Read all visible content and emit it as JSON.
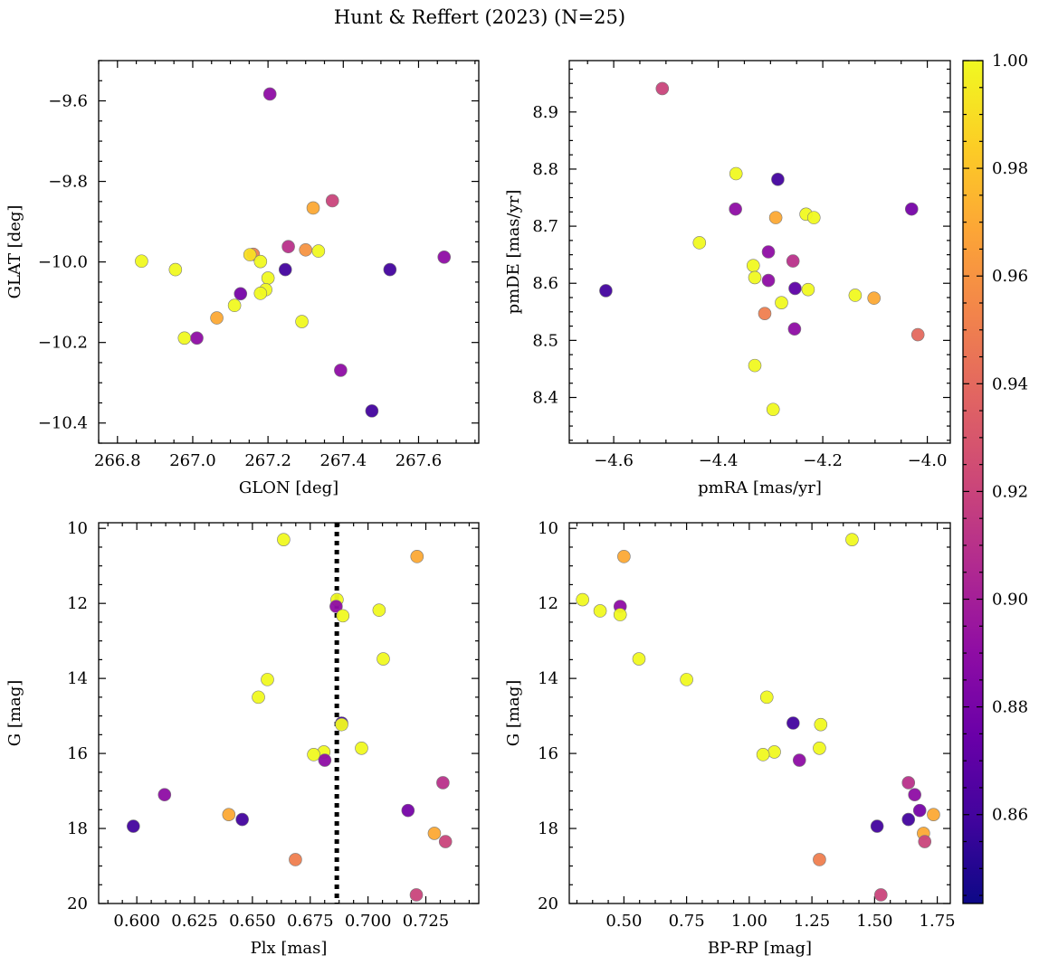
{
  "figure": {
    "title": "Hunt & Reffert (2023) (N=25)"
  },
  "colorbar": {
    "colormap": "plasma",
    "range": [
      0.8435,
      1.0
    ],
    "ticks": [
      0.86,
      0.88,
      0.9,
      0.92,
      0.94,
      0.96,
      0.98,
      1.0
    ],
    "tick_labels": [
      "0.86",
      "0.88",
      "0.90",
      "0.92",
      "0.94",
      "0.96",
      "0.98",
      "1.00"
    ]
  },
  "chart_data": [
    {
      "id": "glon-glat",
      "type": "scatter",
      "xlabel": "GLON [deg]",
      "ylabel": "GLAT [deg]",
      "xlim": [
        266.75,
        267.76
      ],
      "ylim": [
        -10.45,
        -9.5
      ],
      "y_inverted": false,
      "xticks": [
        266.8,
        267.0,
        267.2,
        267.4,
        267.6
      ],
      "xtick_labels": [
        "266.8",
        "267.0",
        "267.2",
        "267.4",
        "267.6"
      ],
      "yticks": [
        -9.6,
        -9.8,
        -10.0,
        -10.2,
        -10.4
      ],
      "ytick_labels": [
        "−9.6",
        "−9.8",
        "−10.0",
        "−10.2",
        "−10.4"
      ],
      "points": [
        {
          "x": 267.205,
          "y": -9.583,
          "c": 0.89
        },
        {
          "x": 267.371,
          "y": -9.848,
          "c": 0.92
        },
        {
          "x": 267.32,
          "y": -9.866,
          "c": 0.97
        },
        {
          "x": 267.3,
          "y": -9.97,
          "c": 0.96
        },
        {
          "x": 267.334,
          "y": -9.973,
          "c": 1.0
        },
        {
          "x": 267.254,
          "y": -9.962,
          "c": 0.91
        },
        {
          "x": 267.668,
          "y": -9.988,
          "c": 0.89
        },
        {
          "x": 266.864,
          "y": -9.998,
          "c": 1.0
        },
        {
          "x": 266.954,
          "y": -10.019,
          "c": 1.0
        },
        {
          "x": 267.161,
          "y": -9.981,
          "c": 0.95
        },
        {
          "x": 267.152,
          "y": -9.982,
          "c": 0.99
        },
        {
          "x": 267.18,
          "y": -9.999,
          "c": 1.0
        },
        {
          "x": 267.246,
          "y": -10.019,
          "c": 0.86
        },
        {
          "x": 267.524,
          "y": -10.019,
          "c": 0.86
        },
        {
          "x": 267.2,
          "y": -10.04,
          "c": 1.0
        },
        {
          "x": 267.194,
          "y": -10.069,
          "c": 1.0
        },
        {
          "x": 267.18,
          "y": -10.078,
          "c": 1.0
        },
        {
          "x": 267.127,
          "y": -10.079,
          "c": 0.88
        },
        {
          "x": 267.111,
          "y": -10.108,
          "c": 1.0
        },
        {
          "x": 267.064,
          "y": -10.139,
          "c": 0.97
        },
        {
          "x": 267.29,
          "y": -10.148,
          "c": 1.0
        },
        {
          "x": 266.978,
          "y": -10.189,
          "c": 1.0
        },
        {
          "x": 267.011,
          "y": -10.189,
          "c": 0.89
        },
        {
          "x": 267.393,
          "y": -10.269,
          "c": 0.89
        },
        {
          "x": 267.476,
          "y": -10.37,
          "c": 0.86
        }
      ]
    },
    {
      "id": "pm",
      "type": "scatter",
      "xlabel": "pmRA [mas/yr]",
      "ylabel": "pmDE [mas/yr]",
      "xlim": [
        -4.685,
        -3.956
      ],
      "ylim": [
        8.32,
        8.99
      ],
      "y_inverted": false,
      "xticks": [
        -4.6,
        -4.4,
        -4.2,
        -4.0
      ],
      "xtick_labels": [
        "−4.6",
        "−4.4",
        "−4.2",
        "−4.0"
      ],
      "yticks": [
        8.4,
        8.5,
        8.6,
        8.7,
        8.8,
        8.9
      ],
      "ytick_labels": [
        "8.4",
        "8.5",
        "8.6",
        "8.7",
        "8.8",
        "8.9"
      ],
      "points": [
        {
          "x": -4.507,
          "y": 8.941,
          "c": 0.92
        },
        {
          "x": -4.366,
          "y": 8.792,
          "c": 1.0
        },
        {
          "x": -4.286,
          "y": 8.782,
          "c": 0.86
        },
        {
          "x": -4.367,
          "y": 8.73,
          "c": 0.89
        },
        {
          "x": -4.03,
          "y": 8.73,
          "c": 0.88
        },
        {
          "x": -4.232,
          "y": 8.721,
          "c": 1.0
        },
        {
          "x": -4.29,
          "y": 8.715,
          "c": 0.97
        },
        {
          "x": -4.217,
          "y": 8.715,
          "c": 1.0
        },
        {
          "x": -4.436,
          "y": 8.671,
          "c": 1.0
        },
        {
          "x": -4.304,
          "y": 8.655,
          "c": 0.89
        },
        {
          "x": -4.257,
          "y": 8.639,
          "c": 0.91
        },
        {
          "x": -4.333,
          "y": 8.631,
          "c": 1.0
        },
        {
          "x": -4.33,
          "y": 8.61,
          "c": 1.0
        },
        {
          "x": -4.304,
          "y": 8.605,
          "c": 0.89
        },
        {
          "x": -4.253,
          "y": 8.591,
          "c": 0.87
        },
        {
          "x": -4.228,
          "y": 8.589,
          "c": 1.0
        },
        {
          "x": -4.615,
          "y": 8.587,
          "c": 0.86
        },
        {
          "x": -4.138,
          "y": 8.579,
          "c": 1.0
        },
        {
          "x": -4.102,
          "y": 8.574,
          "c": 0.97
        },
        {
          "x": -4.279,
          "y": 8.566,
          "c": 1.0
        },
        {
          "x": -4.311,
          "y": 8.547,
          "c": 0.95
        },
        {
          "x": -4.254,
          "y": 8.52,
          "c": 0.89
        },
        {
          "x": -4.018,
          "y": 8.51,
          "c": 0.94
        },
        {
          "x": -4.33,
          "y": 8.456,
          "c": 1.0
        },
        {
          "x": -4.295,
          "y": 8.379,
          "c": 1.0
        }
      ]
    },
    {
      "id": "plx-g",
      "type": "scatter",
      "xlabel": "Plx [mas]",
      "ylabel": "G [mag]",
      "xlim": [
        0.5835,
        0.7479
      ],
      "ylim": [
        20.0,
        9.85
      ],
      "y_inverted": true,
      "vline": {
        "x": 0.6865,
        "style": "dotted",
        "color": "#000000"
      },
      "xticks": [
        0.6,
        0.625,
        0.65,
        0.675,
        0.7,
        0.725
      ],
      "xtick_labels": [
        "0.600",
        "0.625",
        "0.650",
        "0.675",
        "0.700",
        "0.725"
      ],
      "yticks": [
        10,
        12,
        14,
        16,
        18,
        20
      ],
      "ytick_labels": [
        "10",
        "12",
        "14",
        "16",
        "18",
        "20"
      ],
      "points": [
        {
          "x": 0.6635,
          "y": 10.3,
          "c": 1.0
        },
        {
          "x": 0.7212,
          "y": 10.75,
          "c": 0.97
        },
        {
          "x": 0.6866,
          "y": 11.9,
          "c": 1.0
        },
        {
          "x": 0.6862,
          "y": 12.08,
          "c": 0.89
        },
        {
          "x": 0.7048,
          "y": 12.18,
          "c": 1.0
        },
        {
          "x": 0.6891,
          "y": 12.33,
          "c": 1.0
        },
        {
          "x": 0.7066,
          "y": 13.48,
          "c": 1.0
        },
        {
          "x": 0.6565,
          "y": 14.03,
          "c": 1.0
        },
        {
          "x": 0.6526,
          "y": 14.5,
          "c": 1.0
        },
        {
          "x": 0.6886,
          "y": 15.19,
          "c": 0.86
        },
        {
          "x": 0.6886,
          "y": 15.23,
          "c": 1.0
        },
        {
          "x": 0.6972,
          "y": 15.86,
          "c": 1.0
        },
        {
          "x": 0.6809,
          "y": 15.96,
          "c": 1.0
        },
        {
          "x": 0.6765,
          "y": 16.03,
          "c": 1.0
        },
        {
          "x": 0.6813,
          "y": 16.18,
          "c": 0.89
        },
        {
          "x": 0.7324,
          "y": 16.78,
          "c": 0.91
        },
        {
          "x": 0.612,
          "y": 17.1,
          "c": 0.89
        },
        {
          "x": 0.7173,
          "y": 17.52,
          "c": 0.88
        },
        {
          "x": 0.6398,
          "y": 17.63,
          "c": 0.97
        },
        {
          "x": 0.6456,
          "y": 17.76,
          "c": 0.86
        },
        {
          "x": 0.5985,
          "y": 17.94,
          "c": 0.86
        },
        {
          "x": 0.7287,
          "y": 18.13,
          "c": 0.97
        },
        {
          "x": 0.7335,
          "y": 18.35,
          "c": 0.92
        },
        {
          "x": 0.6686,
          "y": 18.83,
          "c": 0.95
        },
        {
          "x": 0.7209,
          "y": 19.77,
          "c": 0.92
        }
      ]
    },
    {
      "id": "cmd",
      "type": "scatter",
      "xlabel": "BP-RP [mag]",
      "ylabel": "G [mag]",
      "xlim": [
        0.282,
        1.802
      ],
      "ylim": [
        20.0,
        9.85
      ],
      "y_inverted": true,
      "xticks": [
        0.5,
        0.75,
        1.0,
        1.25,
        1.5,
        1.75
      ],
      "xtick_labels": [
        "0.50",
        "0.75",
        "1.00",
        "1.25",
        "1.50",
        "1.75"
      ],
      "yticks": [
        10,
        12,
        14,
        16,
        18,
        20
      ],
      "ytick_labels": [
        "10",
        "12",
        "14",
        "16",
        "18",
        "20"
      ],
      "points": [
        {
          "x": 1.41,
          "y": 10.3,
          "c": 1.0
        },
        {
          "x": 0.5,
          "y": 10.75,
          "c": 0.97
        },
        {
          "x": 0.335,
          "y": 11.9,
          "c": 1.0
        },
        {
          "x": 0.485,
          "y": 12.08,
          "c": 0.89
        },
        {
          "x": 0.405,
          "y": 12.2,
          "c": 1.0
        },
        {
          "x": 0.485,
          "y": 12.3,
          "c": 1.0
        },
        {
          "x": 0.56,
          "y": 13.48,
          "c": 1.0
        },
        {
          "x": 0.75,
          "y": 14.03,
          "c": 1.0
        },
        {
          "x": 1.07,
          "y": 14.5,
          "c": 1.0
        },
        {
          "x": 1.175,
          "y": 15.19,
          "c": 0.86
        },
        {
          "x": 1.285,
          "y": 15.23,
          "c": 1.0
        },
        {
          "x": 1.28,
          "y": 15.86,
          "c": 1.0
        },
        {
          "x": 1.1,
          "y": 15.96,
          "c": 1.0
        },
        {
          "x": 1.055,
          "y": 16.03,
          "c": 1.0
        },
        {
          "x": 1.2,
          "y": 16.18,
          "c": 0.89
        },
        {
          "x": 1.635,
          "y": 16.78,
          "c": 0.91
        },
        {
          "x": 1.66,
          "y": 17.1,
          "c": 0.89
        },
        {
          "x": 1.68,
          "y": 17.52,
          "c": 0.88
        },
        {
          "x": 1.735,
          "y": 17.63,
          "c": 0.97
        },
        {
          "x": 1.635,
          "y": 17.76,
          "c": 0.86
        },
        {
          "x": 1.51,
          "y": 17.94,
          "c": 0.86
        },
        {
          "x": 1.695,
          "y": 18.13,
          "c": 0.97
        },
        {
          "x": 1.7,
          "y": 18.35,
          "c": 0.92
        },
        {
          "x": 1.28,
          "y": 18.83,
          "c": 0.95
        },
        {
          "x": 1.525,
          "y": 19.77,
          "c": 0.92
        }
      ]
    }
  ]
}
